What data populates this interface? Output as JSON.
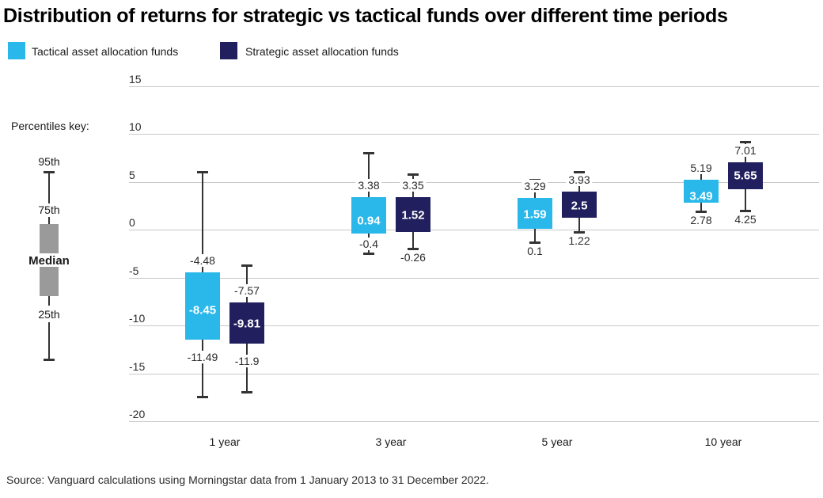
{
  "title": "Distribution of returns for strategic vs tactical funds over different time periods",
  "legend": [
    {
      "label": "Tactical asset allocation funds",
      "color": "#29b8e9"
    },
    {
      "label": "Strategic asset allocation funds",
      "color": "#221f5e"
    }
  ],
  "percentiles_key": {
    "heading": "Percentiles key:",
    "labels": {
      "p95": "95th",
      "p75": "75th",
      "median": "Median",
      "p25": "25th"
    },
    "box_color": "#9a9a9a"
  },
  "source": "Source: Vanguard calculations using Morningstar data from 1 January 2013 to 31 December 2022.",
  "chart_data": {
    "type": "boxplot",
    "title": "Distribution of returns for strategic vs tactical funds over different time periods",
    "categories": [
      "1 year",
      "3 year",
      "5 year",
      "10 year"
    ],
    "ylim": [
      -20,
      15
    ],
    "yticks": [
      15,
      10,
      5,
      0,
      -5,
      -10,
      -15,
      -20
    ],
    "grid": true,
    "legend_position": "top-left",
    "series": [
      {
        "name": "Tactical asset allocation funds",
        "color": "#29b8e9",
        "boxes": [
          {
            "whisker_high": 6.0,
            "p75": -4.48,
            "median": -8.45,
            "p25": -11.49,
            "whisker_low": -17.5,
            "low_label_between": true
          },
          {
            "whisker_high": 8.0,
            "p75": 3.38,
            "median": 0.94,
            "p25": -0.4,
            "whisker_low": -2.6,
            "low_label_between": true
          },
          {
            "whisker_high": 5.2,
            "p75": 3.29,
            "median": 1.59,
            "p25": 0.1,
            "whisker_low": -1.4,
            "low_label_between": false
          },
          {
            "whisker_high": 7.0,
            "p75": 5.19,
            "median": 3.49,
            "p25": 2.78,
            "whisker_low": 1.8,
            "low_label_between": false
          }
        ]
      },
      {
        "name": "Strategic asset allocation funds",
        "color": "#221f5e",
        "boxes": [
          {
            "whisker_high": -3.7,
            "p75": -7.57,
            "median": -9.81,
            "p25": -11.9,
            "whisker_low": -17.0,
            "low_label_between": true
          },
          {
            "whisker_high": 5.8,
            "p75": 3.35,
            "median": 1.52,
            "p25": -0.26,
            "whisker_low": -2.1,
            "low_label_between": false
          },
          {
            "whisker_high": 6.0,
            "p75": 3.93,
            "median": 2.5,
            "p25": 1.22,
            "whisker_low": -0.3,
            "low_label_between": false
          },
          {
            "whisker_high": 9.2,
            "p75": 7.01,
            "median": 5.65,
            "p25": 4.25,
            "whisker_low": 1.9,
            "low_label_between": false
          }
        ]
      }
    ]
  }
}
